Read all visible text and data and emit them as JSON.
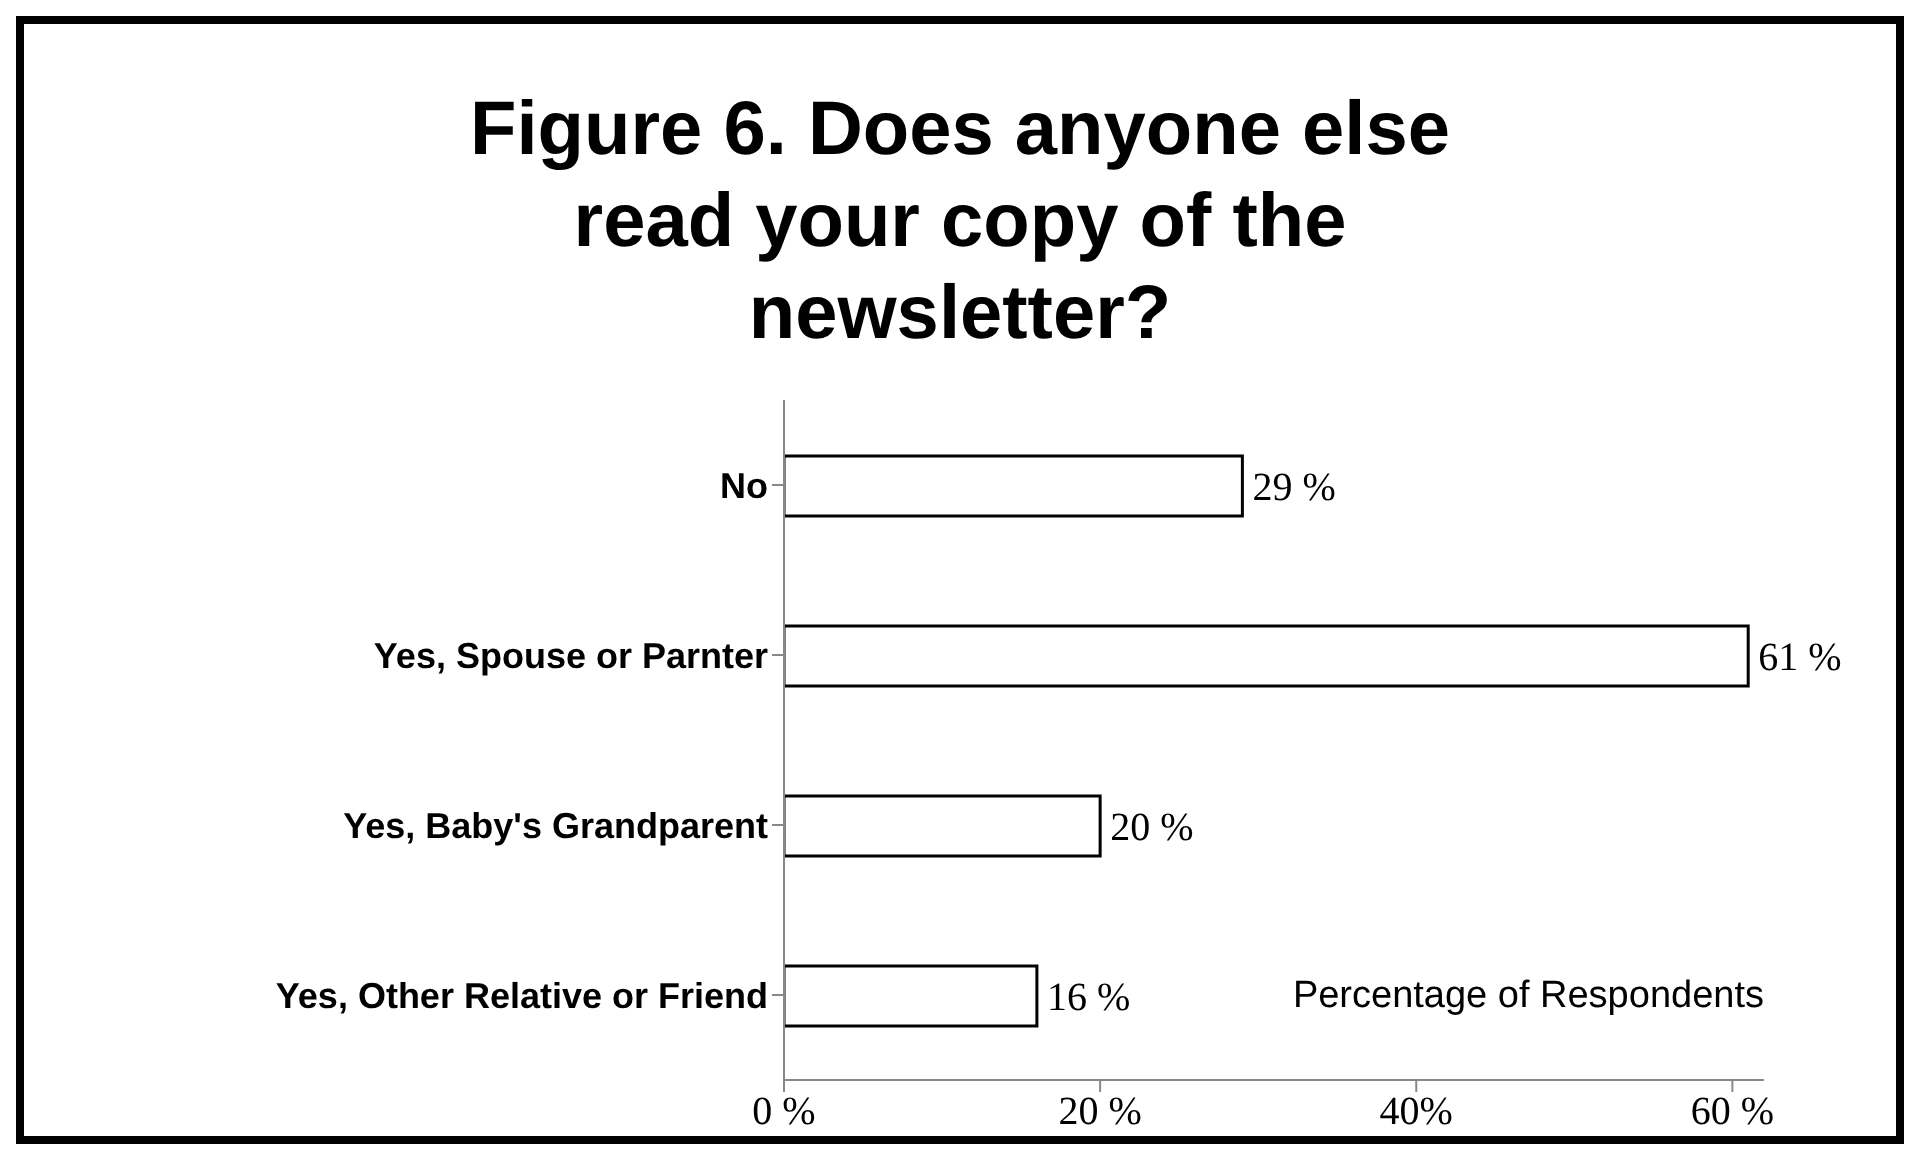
{
  "chart_data": {
    "type": "bar",
    "orientation": "horizontal",
    "title": "Figure 6. Does anyone else read your copy of the newsletter?",
    "xlabel": "Percentage of Respondents",
    "categories": [
      "No",
      "Yes, Spouse or Parnter",
      "Yes, Baby's Grandparent",
      "Yes, Other Relative or Friend"
    ],
    "values": [
      29,
      61,
      20,
      16
    ],
    "value_labels": [
      "29 %",
      "61 %",
      "20 %",
      "16 %"
    ],
    "color": "#ffffff",
    "xlim": [
      0,
      62
    ],
    "xticks": [
      {
        "value": 0,
        "label": "0 %"
      },
      {
        "value": 20,
        "label": "20 %"
      },
      {
        "value": 40,
        "label": "40%"
      },
      {
        "value": 60,
        "label": "60 %"
      }
    ],
    "grid": false,
    "legend": false
  }
}
